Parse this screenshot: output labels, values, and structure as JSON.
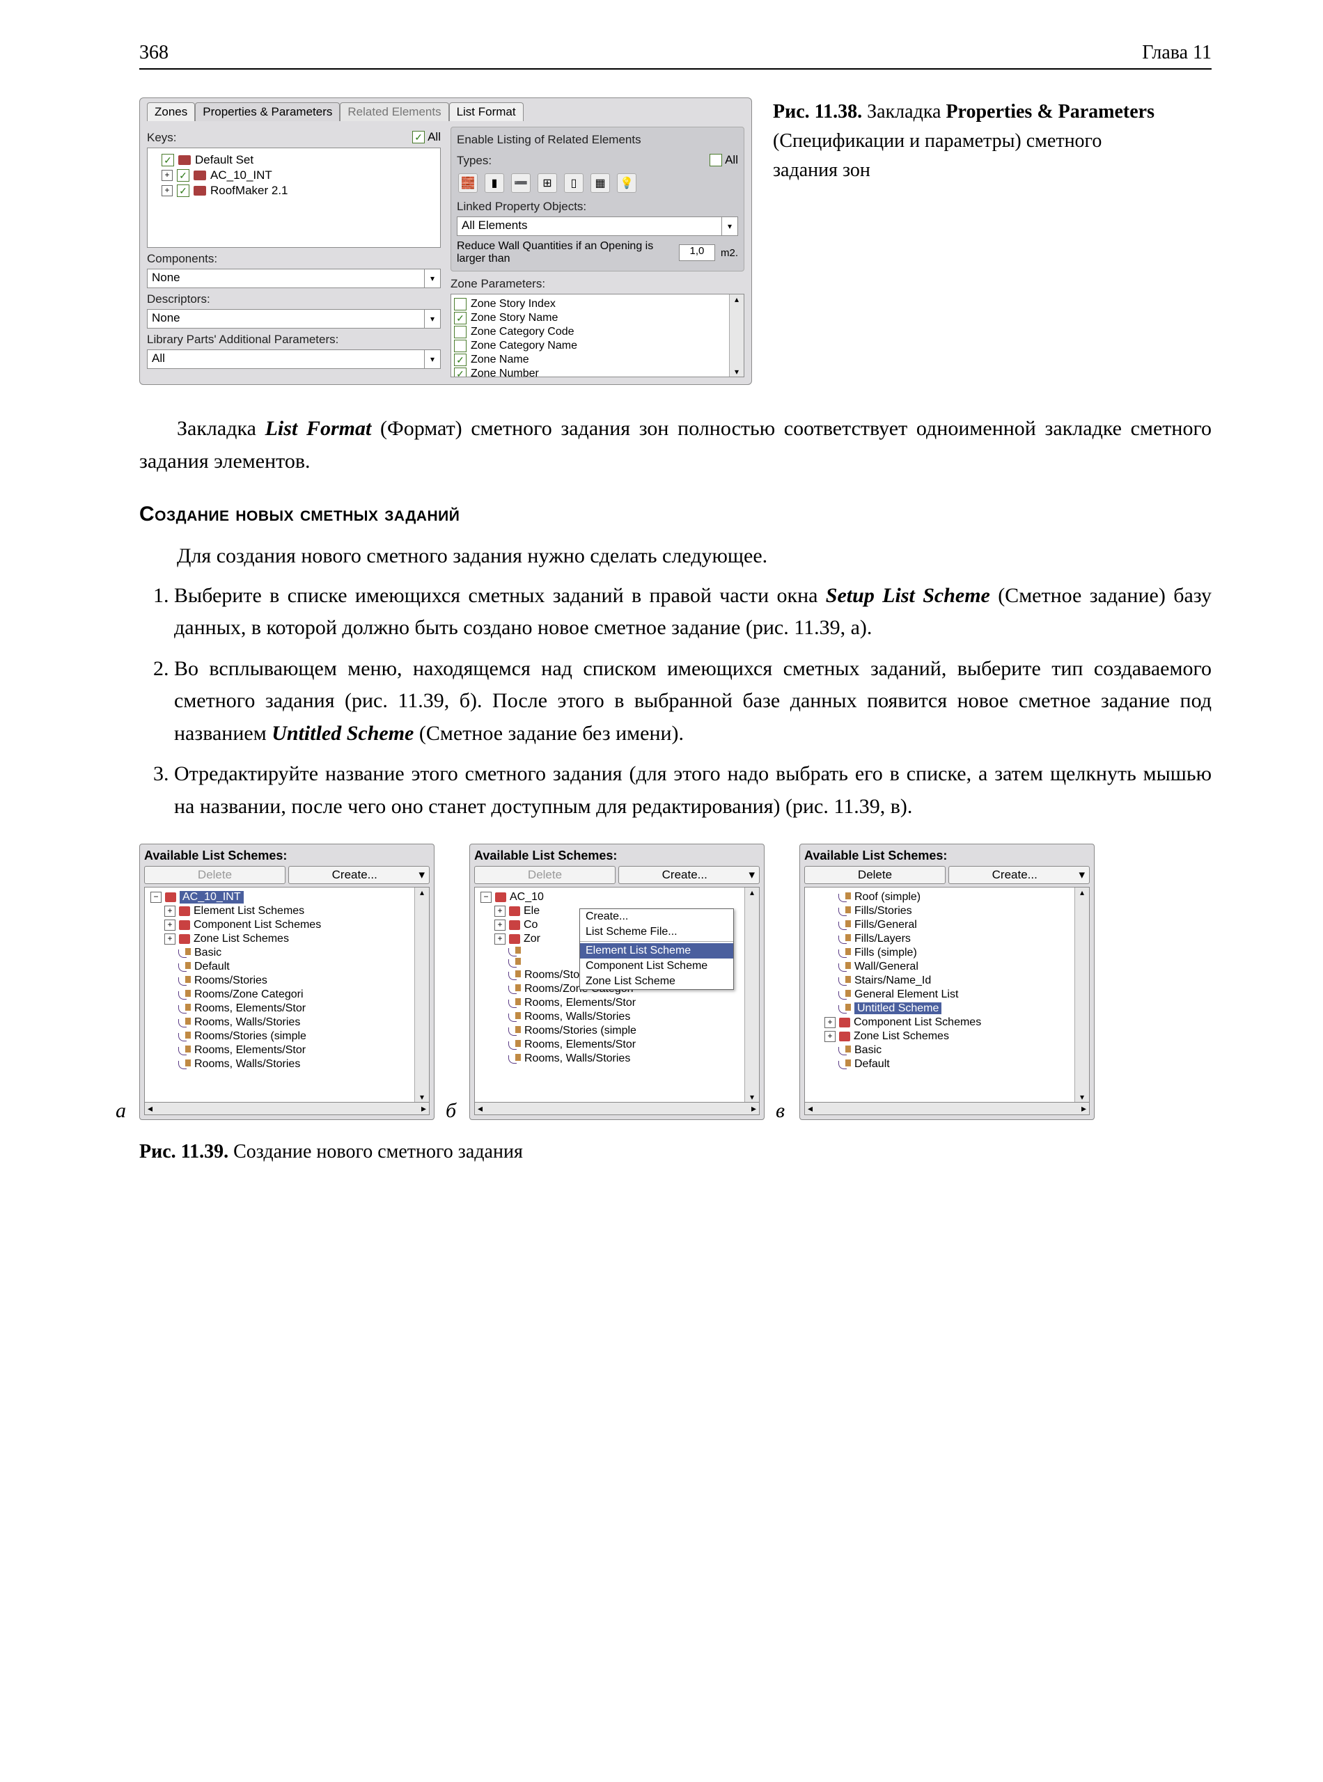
{
  "page": {
    "number": "368",
    "chapter": "Глава 11"
  },
  "fig38": {
    "tabs": [
      "Zones",
      "Properties & Parameters",
      "Related Elements",
      "List Format"
    ],
    "activeTab": 1,
    "keysLabel": "Keys:",
    "allLabel": "All",
    "keys": [
      "Default Set",
      "AC_10_INT",
      "RoofMaker 2.1"
    ],
    "componentsLabel": "Components:",
    "componentsValue": "None",
    "descriptorsLabel": "Descriptors:",
    "descriptorsValue": "None",
    "libParamsLabel": "Library Parts' Additional Parameters:",
    "libParamsValue": "All",
    "relatedTitle": "Enable Listing of Related Elements",
    "typesLabel": "Types:",
    "linkedLabel": "Linked Property Objects:",
    "linkedValue": "All Elements",
    "reduceLabel": "Reduce Wall Quantities if an Opening is larger than",
    "reduceValue": "1,0",
    "reduceUnit": "m2.",
    "zoneParamsLabel": "Zone Parameters:",
    "zoneParams": [
      {
        "name": "Zone Story Index",
        "checked": false
      },
      {
        "name": "Zone Story Name",
        "checked": true
      },
      {
        "name": "Zone Category Code",
        "checked": false
      },
      {
        "name": "Zone Category Name",
        "checked": false
      },
      {
        "name": "Zone Name",
        "checked": true
      },
      {
        "name": "Zone Number",
        "checked": true
      }
    ],
    "caption_strong": "Рис. 11.38.",
    "caption_a": " Закладка ",
    "caption_bold": "Properties & Parameters",
    "caption_b": " (Спецификации и параметры) сметного задания зон"
  },
  "para1_a": "Закладка ",
  "para1_bold": "List Format",
  "para1_b": " (Формат) сметного задания зон полностью соответствует одноименной закладке сметного задания элементов.",
  "heading2": "Создание новых сметных заданий",
  "para2": "Для создания нового сметного задания нужно сделать следующее.",
  "list": [
    {
      "pre": "Выберите в списке имеющихся сметных заданий в правой части окна ",
      "bold": "Setup List Scheme",
      "post": " (Сметное задание) базу данных, в которой должно быть создано новое сметное задание (рис. 11.39, а)."
    },
    {
      "pre": "Во всплывающем меню, находящемся над списком имеющихся сметных заданий, выберите тип создаваемого сметного задания (рис. 11.39, б). После этого в выбранной базе данных появится новое сметное задание под названием ",
      "bold": "Untitled Scheme",
      "post": " (Сметное задание без имени)."
    },
    {
      "pre": "Отредактируйте название этого сметного задания (для этого надо выбрать его в списке, а затем щелкнуть мышью на названии, после чего оно станет доступным для редактирования) (рис. 11.39, в).",
      "bold": "",
      "post": ""
    }
  ],
  "fig39": {
    "title": "Available List Schemes:",
    "deleteBtn": "Delete",
    "createBtn": "Create...",
    "labels": [
      "а",
      "б",
      "в"
    ],
    "panelA": {
      "root": "AC_10_INT",
      "items": [
        {
          "ind": 1,
          "type": "cat",
          "text": "Element List Schemes"
        },
        {
          "ind": 1,
          "type": "cat",
          "text": "Component List Schemes"
        },
        {
          "ind": 1,
          "type": "cat",
          "text": "Zone List Schemes"
        },
        {
          "ind": 2,
          "type": "leaf",
          "text": "Basic"
        },
        {
          "ind": 2,
          "type": "leaf",
          "text": "Default"
        },
        {
          "ind": 2,
          "type": "leaf",
          "text": "Rooms/Stories"
        },
        {
          "ind": 2,
          "type": "leaf",
          "text": "Rooms/Zone Categori"
        },
        {
          "ind": 2,
          "type": "leaf",
          "text": "Rooms, Elements/Stor"
        },
        {
          "ind": 2,
          "type": "leaf",
          "text": "Rooms, Walls/Stories"
        },
        {
          "ind": 2,
          "type": "leaf",
          "text": "Rooms/Stories (simple"
        },
        {
          "ind": 2,
          "type": "leaf",
          "text": "Rooms, Elements/Stor"
        },
        {
          "ind": 2,
          "type": "leaf",
          "text": "Rooms, Walls/Stories"
        }
      ]
    },
    "panelB": {
      "root": "AC_10",
      "popup": [
        "Create...",
        "List Scheme File...",
        "—",
        "Element List Scheme",
        "Component List Scheme",
        "Zone List Scheme"
      ],
      "popupHighlight": 3,
      "items": [
        {
          "ind": 1,
          "type": "cat",
          "text": "Ele"
        },
        {
          "ind": 1,
          "type": "cat",
          "text": "Co"
        },
        {
          "ind": 1,
          "type": "cat",
          "text": "Zor"
        },
        {
          "ind": 2,
          "type": "leaf",
          "text": ""
        },
        {
          "ind": 2,
          "type": "leaf",
          "text": ""
        },
        {
          "ind": 2,
          "type": "leaf",
          "text": "Rooms/Stories"
        },
        {
          "ind": 2,
          "type": "leaf",
          "text": "Rooms/Zone Categori"
        },
        {
          "ind": 2,
          "type": "leaf",
          "text": "Rooms, Elements/Stor"
        },
        {
          "ind": 2,
          "type": "leaf",
          "text": "Rooms, Walls/Stories"
        },
        {
          "ind": 2,
          "type": "leaf",
          "text": "Rooms/Stories (simple"
        },
        {
          "ind": 2,
          "type": "leaf",
          "text": "Rooms, Elements/Stor"
        },
        {
          "ind": 2,
          "type": "leaf",
          "text": "Rooms, Walls/Stories"
        }
      ]
    },
    "panelC": {
      "items": [
        {
          "ind": 2,
          "type": "leaf",
          "text": "Roof (simple)"
        },
        {
          "ind": 2,
          "type": "leaf",
          "text": "Fills/Stories"
        },
        {
          "ind": 2,
          "type": "leaf",
          "text": "Fills/General"
        },
        {
          "ind": 2,
          "type": "leaf",
          "text": "Fills/Layers"
        },
        {
          "ind": 2,
          "type": "leaf",
          "text": "Fills (simple)"
        },
        {
          "ind": 2,
          "type": "leaf",
          "text": "Wall/General"
        },
        {
          "ind": 2,
          "type": "leaf",
          "text": "Stairs/Name_Id"
        },
        {
          "ind": 2,
          "type": "leaf",
          "text": "General Element List"
        },
        {
          "ind": 2,
          "type": "leaf",
          "text": "Untitled Scheme",
          "sel": true
        },
        {
          "ind": 1,
          "type": "cat",
          "text": "Component List Schemes"
        },
        {
          "ind": 1,
          "type": "cat",
          "text": "Zone List Schemes"
        },
        {
          "ind": 2,
          "type": "leaf",
          "text": "Basic"
        },
        {
          "ind": 2,
          "type": "leaf",
          "text": "Default"
        }
      ]
    },
    "caption_strong": "Рис. 11.39.",
    "caption_rest": " Создание нового сметного задания"
  }
}
